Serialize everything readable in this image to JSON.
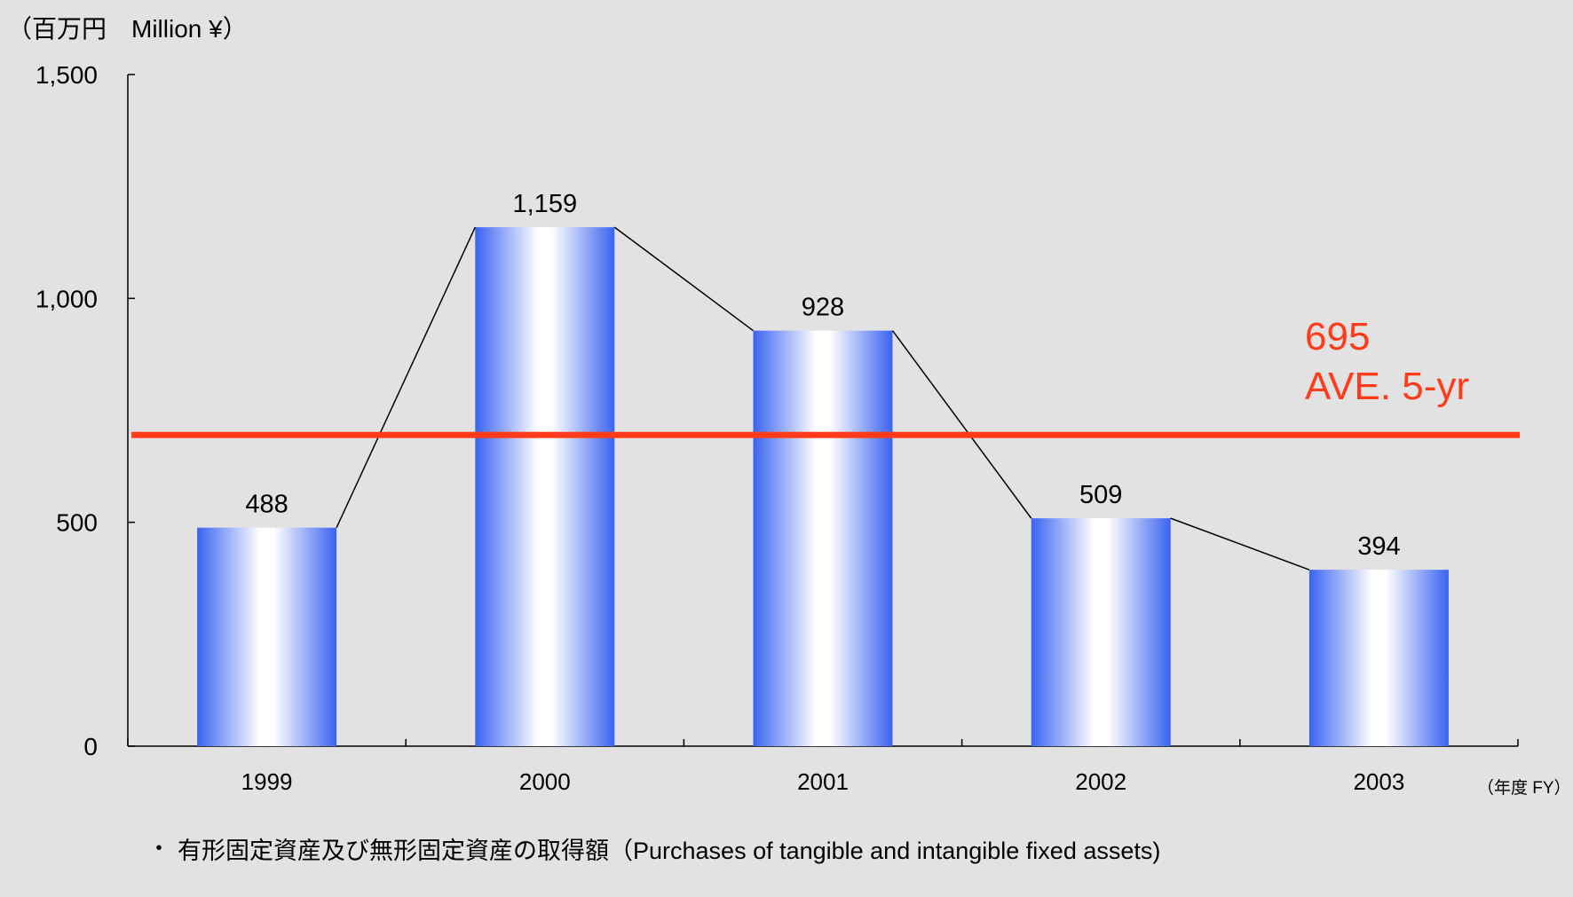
{
  "chart_data": {
    "type": "bar",
    "unit_label": "（百万円　Million ¥）",
    "x_unit_label": "（年度 FY）",
    "categories": [
      "1999",
      "2000",
      "2001",
      "2002",
      "2003"
    ],
    "values": [
      488,
      1159,
      928,
      509,
      394
    ],
    "value_labels": [
      "488",
      "1,159",
      "928",
      "509",
      "394"
    ],
    "ylim": [
      0,
      1500
    ],
    "yticks": [
      0,
      500,
      1000,
      1500
    ],
    "ytick_labels": [
      "0",
      "500",
      "1,000",
      "1,500"
    ],
    "connecting_line": true,
    "average": {
      "value": 695,
      "value_label": "695",
      "label": "AVE. 5-yr",
      "color": "#ff3b1a"
    },
    "bar_colors": {
      "edge": "#3a63f0",
      "center": "#ffffff"
    },
    "grid": false,
    "legend": "bottom"
  },
  "legend": {
    "marker": "・",
    "text": "有形固定資産及び無形固定資産の取得額（Purchases of tangible and intangible fixed assets)"
  }
}
